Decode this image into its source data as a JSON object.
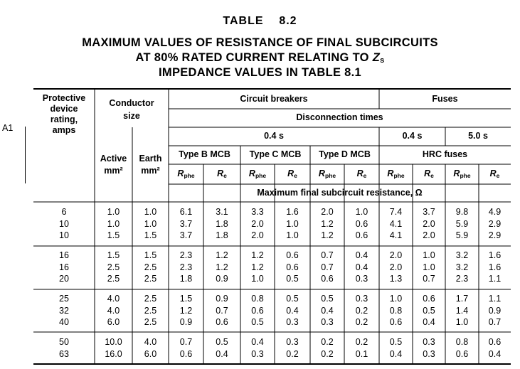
{
  "table": {
    "title": "TABLE    8.2",
    "subtitle_lines": [
      "MAXIMUM VALUES OF RESISTANCE OF FINAL SUBCIRCUITS",
      "AT 80% RATED CURRENT RELATING TO",
      "IMPEDANCE VALUES IN TABLE 8.1"
    ],
    "zs_symbol": "Z",
    "zs_sub": "s",
    "margin_note": "A1"
  },
  "headers": {
    "protective_lines": [
      "Protective",
      "device",
      "rating,",
      "amps"
    ],
    "conductor_lines": [
      "Conductor",
      "size"
    ],
    "active_lines": [
      "Active",
      "mm²"
    ],
    "earth_lines": [
      "Earth",
      "mm²"
    ],
    "circuit_breakers": "Circuit breakers",
    "fuses": "Fuses",
    "disconnection_times": "Disconnection times",
    "time_04_cb": "0.4 s",
    "time_04_fuse": "0.4 s",
    "time_50_fuse": "5.0 s",
    "type_b": "Type B MCB",
    "type_c": "Type C MCB",
    "type_d": "Type D MCB",
    "hrc": "HRC fuses",
    "rphe_main": "R",
    "rphe_sub": "phe",
    "re_main": "R",
    "re_sub": "e",
    "resistance_caption": "Maximum final subcircuit resistance, Ω"
  },
  "row_groups": [
    [
      [
        "6",
        "1.0",
        "1.0",
        "6.1",
        "3.1",
        "3.3",
        "1.6",
        "2.0",
        "1.0",
        "7.4",
        "3.7",
        "9.8",
        "4.9"
      ],
      [
        "10",
        "1.0",
        "1.0",
        "3.7",
        "1.8",
        "2.0",
        "1.0",
        "1.2",
        "0.6",
        "4.1",
        "2.0",
        "5.9",
        "2.9"
      ],
      [
        "10",
        "1.5",
        "1.5",
        "3.7",
        "1.8",
        "2.0",
        "1.0",
        "1.2",
        "0.6",
        "4.1",
        "2.0",
        "5.9",
        "2.9"
      ]
    ],
    [
      [
        "16",
        "1.5",
        "1.5",
        "2.3",
        "1.2",
        "1.2",
        "0.6",
        "0.7",
        "0.4",
        "2.0",
        "1.0",
        "3.2",
        "1.6"
      ],
      [
        "16",
        "2.5",
        "2.5",
        "2.3",
        "1.2",
        "1.2",
        "0.6",
        "0.7",
        "0.4",
        "2.0",
        "1.0",
        "3.2",
        "1.6"
      ],
      [
        "20",
        "2.5",
        "2.5",
        "1.8",
        "0.9",
        "1.0",
        "0.5",
        "0.6",
        "0.3",
        "1.3",
        "0.7",
        "2.3",
        "1.1"
      ]
    ],
    [
      [
        "25",
        "4.0",
        "2.5",
        "1.5",
        "0.9",
        "0.8",
        "0.5",
        "0.5",
        "0.3",
        "1.0",
        "0.6",
        "1.7",
        "1.1"
      ],
      [
        "32",
        "4.0",
        "2.5",
        "1.2",
        "0.7",
        "0.6",
        "0.4",
        "0.4",
        "0.2",
        "0.8",
        "0.5",
        "1.4",
        "0.9"
      ],
      [
        "40",
        "6.0",
        "2.5",
        "0.9",
        "0.6",
        "0.5",
        "0.3",
        "0.3",
        "0.2",
        "0.6",
        "0.4",
        "1.0",
        "0.7"
      ]
    ],
    [
      [
        "50",
        "10.0",
        "4.0",
        "0.7",
        "0.5",
        "0.4",
        "0.3",
        "0.2",
        "0.2",
        "0.5",
        "0.3",
        "0.8",
        "0.6"
      ],
      [
        "63",
        "16.0",
        "6.0",
        "0.6",
        "0.4",
        "0.3",
        "0.2",
        "0.2",
        "0.1",
        "0.4",
        "0.3",
        "0.6",
        "0.4"
      ]
    ]
  ]
}
